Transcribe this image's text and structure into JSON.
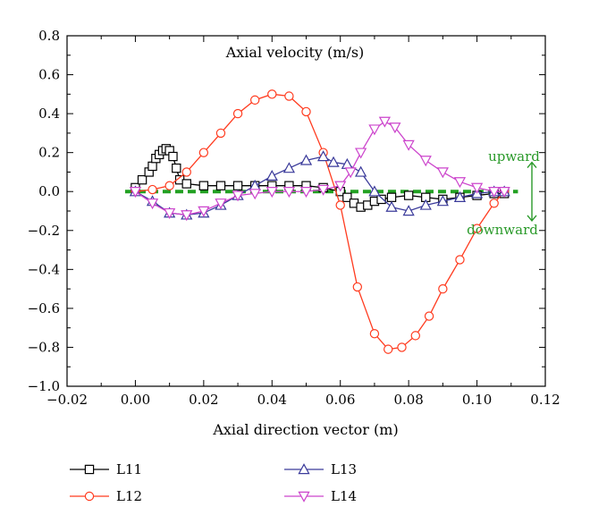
{
  "chart_data": {
    "type": "line",
    "title": "Axial velocity (m/s)",
    "xlabel": "Axial direction vector (m)",
    "ylabel": "",
    "xlim": [
      -0.02,
      0.12
    ],
    "ylim": [
      -1.0,
      0.8
    ],
    "x_ticks": [
      "−0.02",
      "0.00",
      "0.02",
      "0.04",
      "0.06",
      "0.08",
      "0.10",
      "0.12"
    ],
    "y_ticks": [
      "0.8",
      "0.6",
      "0.4",
      "0.2",
      "0.0",
      "−0.2",
      "−0.4",
      "−0.6",
      "−0.8",
      "−1.0"
    ],
    "x_tick_values": [
      -0.02,
      0.0,
      0.02,
      0.04,
      0.06,
      0.08,
      0.1,
      0.12
    ],
    "y_tick_values": [
      0.8,
      0.6,
      0.4,
      0.2,
      0.0,
      -0.2,
      -0.4,
      -0.6,
      -0.8,
      -1.0
    ],
    "grid": false,
    "legend_position": "below-plot",
    "annotations": {
      "upward": "upward",
      "downward": "downward",
      "color": "#2a9a2a"
    },
    "zero_line_color": "#22a022",
    "series": [
      {
        "name": "L11",
        "color": "#000000",
        "marker": "square",
        "x": [
          0.0,
          0.002,
          0.004,
          0.005,
          0.006,
          0.007,
          0.008,
          0.009,
          0.01,
          0.011,
          0.012,
          0.013,
          0.015,
          0.02,
          0.025,
          0.03,
          0.035,
          0.04,
          0.045,
          0.05,
          0.055,
          0.06,
          0.062,
          0.064,
          0.066,
          0.068,
          0.07,
          0.072,
          0.075,
          0.08,
          0.085,
          0.09,
          0.095,
          0.1,
          0.105,
          0.108
        ],
        "y": [
          0.02,
          0.06,
          0.1,
          0.13,
          0.17,
          0.19,
          0.21,
          0.22,
          0.21,
          0.18,
          0.12,
          0.06,
          0.04,
          0.03,
          0.03,
          0.03,
          0.03,
          0.03,
          0.03,
          0.03,
          0.02,
          0.0,
          -0.03,
          -0.06,
          -0.08,
          -0.07,
          -0.05,
          -0.04,
          -0.03,
          -0.02,
          -0.03,
          -0.04,
          -0.03,
          -0.02,
          -0.01,
          -0.01
        ]
      },
      {
        "name": "L12",
        "color": "#ff3b1f",
        "marker": "circle",
        "x": [
          0.0,
          0.005,
          0.01,
          0.015,
          0.02,
          0.025,
          0.03,
          0.035,
          0.04,
          0.045,
          0.05,
          0.055,
          0.06,
          0.065,
          0.07,
          0.074,
          0.078,
          0.082,
          0.086,
          0.09,
          0.095,
          0.1,
          0.105,
          0.108
        ],
        "y": [
          0.0,
          0.01,
          0.03,
          0.1,
          0.2,
          0.3,
          0.4,
          0.47,
          0.5,
          0.49,
          0.41,
          0.2,
          -0.07,
          -0.49,
          -0.73,
          -0.81,
          -0.8,
          -0.74,
          -0.64,
          -0.5,
          -0.35,
          -0.19,
          -0.06,
          0.0
        ]
      },
      {
        "name": "L13",
        "color": "#3a3a9a",
        "marker": "triangle-up",
        "x": [
          0.0,
          0.005,
          0.01,
          0.015,
          0.02,
          0.025,
          0.03,
          0.035,
          0.04,
          0.045,
          0.05,
          0.055,
          0.058,
          0.062,
          0.066,
          0.07,
          0.075,
          0.08,
          0.085,
          0.09,
          0.095,
          0.1,
          0.105,
          0.108
        ],
        "y": [
          0.0,
          -0.05,
          -0.11,
          -0.12,
          -0.11,
          -0.07,
          -0.02,
          0.03,
          0.08,
          0.12,
          0.16,
          0.18,
          0.15,
          0.14,
          0.1,
          0.0,
          -0.08,
          -0.1,
          -0.07,
          -0.05,
          -0.03,
          -0.01,
          0.0,
          0.0
        ]
      },
      {
        "name": "L14",
        "color": "#cc44cc",
        "marker": "triangle-down",
        "x": [
          0.0,
          0.005,
          0.01,
          0.015,
          0.02,
          0.025,
          0.03,
          0.035,
          0.04,
          0.045,
          0.05,
          0.055,
          0.06,
          0.063,
          0.066,
          0.07,
          0.073,
          0.076,
          0.08,
          0.085,
          0.09,
          0.095,
          0.1,
          0.105,
          0.108
        ],
        "y": [
          0.0,
          -0.06,
          -0.11,
          -0.12,
          -0.1,
          -0.06,
          -0.02,
          -0.01,
          0.0,
          0.0,
          0.0,
          0.01,
          0.03,
          0.1,
          0.2,
          0.32,
          0.36,
          0.33,
          0.24,
          0.16,
          0.1,
          0.05,
          0.02,
          0.0,
          0.0
        ]
      }
    ]
  }
}
